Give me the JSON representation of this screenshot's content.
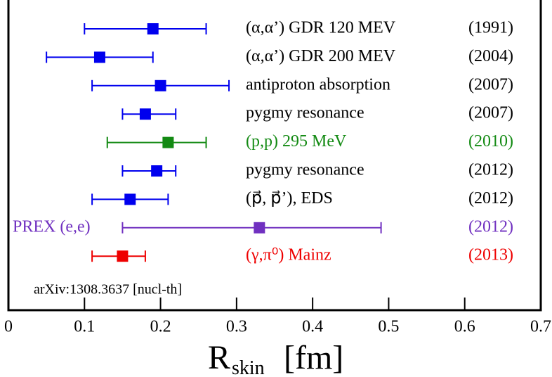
{
  "chart_data": {
    "type": "errorbar",
    "xlim": [
      0,
      0.7
    ],
    "xticks": [
      0,
      0.1,
      0.2,
      0.3,
      0.4,
      0.5,
      0.6,
      0.7
    ],
    "xlabel": "R",
    "xlabel_sub": "skin",
    "xlabel_unit": "[fm]",
    "annotation": "arXiv:1308.3637 [nucl-th]",
    "rows": [
      {
        "label": "(α,α’) GDR 120 MEV",
        "year": "(1991)",
        "color": "#0000ee",
        "text_color": "#000000",
        "label_side": "right",
        "value": 0.19,
        "low": 0.1,
        "high": 0.26
      },
      {
        "label": "(α,α’) GDR 200 MEV",
        "year": "(2004)",
        "color": "#0000ee",
        "text_color": "#000000",
        "label_side": "right",
        "value": 0.12,
        "low": 0.05,
        "high": 0.19
      },
      {
        "label": "antiproton absorption",
        "year": "(2007)",
        "color": "#0000ee",
        "text_color": "#000000",
        "label_side": "right",
        "value": 0.2,
        "low": 0.11,
        "high": 0.29
      },
      {
        "label": "pygmy resonance",
        "year": "(2007)",
        "color": "#0000ee",
        "text_color": "#000000",
        "label_side": "right",
        "value": 0.18,
        "low": 0.15,
        "high": 0.22
      },
      {
        "label": "(p,p) 295 MeV",
        "year": "(2010)",
        "color": "#138a13",
        "text_color": "#138a13",
        "label_side": "right",
        "value": 0.21,
        "low": 0.13,
        "high": 0.26
      },
      {
        "label": "pygmy resonance",
        "year": "(2012)",
        "color": "#0000ee",
        "text_color": "#000000",
        "label_side": "right",
        "value": 0.195,
        "low": 0.15,
        "high": 0.22
      },
      {
        "label": "(p⃗, p⃗’), EDS",
        "year": "(2012)",
        "color": "#0000ee",
        "text_color": "#000000",
        "label_side": "right",
        "value": 0.16,
        "low": 0.11,
        "high": 0.21
      },
      {
        "label": "PREX (e,e)",
        "year": "(2012)",
        "color": "#7030c0",
        "text_color": "#7030c0",
        "label_side": "left",
        "value": 0.33,
        "low": 0.15,
        "high": 0.49
      },
      {
        "label": "(γ,π⁰) Mainz",
        "year": "(2013)",
        "color": "#ee0000",
        "text_color": "#ee0000",
        "label_side": "right",
        "value": 0.15,
        "low": 0.11,
        "high": 0.18
      }
    ]
  }
}
